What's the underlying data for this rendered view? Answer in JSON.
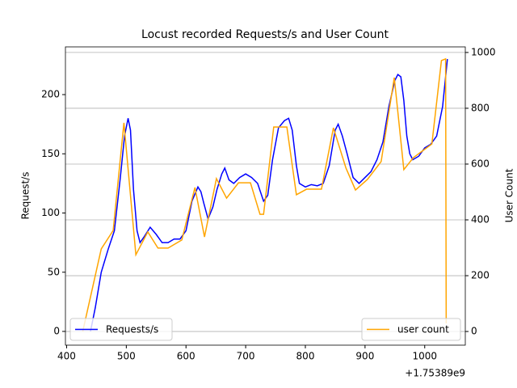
{
  "chart_data": {
    "type": "line",
    "title": "Locust recorded Requests/s and User Count",
    "ylabel": "Request/s",
    "y2label": "User Count",
    "x_offset_label": "+1.75389e9",
    "xlim": [
      398,
      1068
    ],
    "xticks": [
      400,
      500,
      600,
      700,
      800,
      900,
      1000
    ],
    "ylim": [
      -11.6,
      240.3
    ],
    "yticks": [
      0,
      50,
      100,
      150,
      200
    ],
    "y2lim": [
      -49,
      1020
    ],
    "y2ticks": [
      0,
      200,
      400,
      600,
      800,
      1000
    ],
    "grid": "y2",
    "series": [
      {
        "name": "Requests/s",
        "color": "#0000ff",
        "axis": "y",
        "legend": "lower left",
        "x": [
          440,
          448,
          458,
          470,
          480,
          490,
          497,
          503,
          507,
          512,
          518,
          523,
          530,
          540,
          550,
          560,
          570,
          580,
          590,
          600,
          610,
          620,
          625,
          630,
          637,
          645,
          652,
          660,
          665,
          672,
          680,
          690,
          700,
          710,
          720,
          730,
          737,
          745,
          755,
          765,
          772,
          778,
          785,
          790,
          800,
          810,
          820,
          830,
          840,
          850,
          855,
          862,
          870,
          880,
          890,
          900,
          910,
          920,
          930,
          940,
          950,
          955,
          960,
          965,
          970,
          975,
          980,
          990,
          1000,
          1010,
          1020,
          1030,
          1035,
          1038
        ],
        "values": [
          0,
          20,
          50,
          70,
          85,
          130,
          165,
          180,
          170,
          120,
          85,
          75,
          80,
          88,
          82,
          75,
          75,
          78,
          78,
          85,
          110,
          122,
          118,
          108,
          95,
          105,
          120,
          133,
          138,
          128,
          125,
          130,
          133,
          130,
          125,
          110,
          115,
          145,
          172,
          178,
          180,
          170,
          140,
          125,
          122,
          124,
          123,
          125,
          140,
          170,
          175,
          165,
          150,
          130,
          125,
          130,
          135,
          145,
          160,
          190,
          212,
          217,
          215,
          195,
          165,
          150,
          145,
          148,
          155,
          158,
          165,
          190,
          215,
          230
        ]
      },
      {
        "name": "user count",
        "color": "#ffa500",
        "axis": "y2",
        "legend": "lower right",
        "x": [
          427,
          458,
          478,
          496,
          516,
          536,
          553,
          570,
          593,
          615,
          631,
          651,
          668,
          688,
          708,
          724,
          730,
          747,
          769,
          785,
          802,
          827,
          847,
          868,
          884,
          904,
          927,
          949,
          965,
          981,
          1012,
          1028,
          1035,
          1036
        ],
        "values": [
          0,
          296,
          362,
          748,
          275,
          357,
          299,
          299,
          328,
          516,
          339,
          548,
          478,
          533,
          533,
          420,
          420,
          733,
          733,
          490,
          510,
          510,
          730,
          586,
          507,
          545,
          609,
          910,
          580,
          623,
          672,
          971,
          977,
          29
        ]
      }
    ]
  }
}
